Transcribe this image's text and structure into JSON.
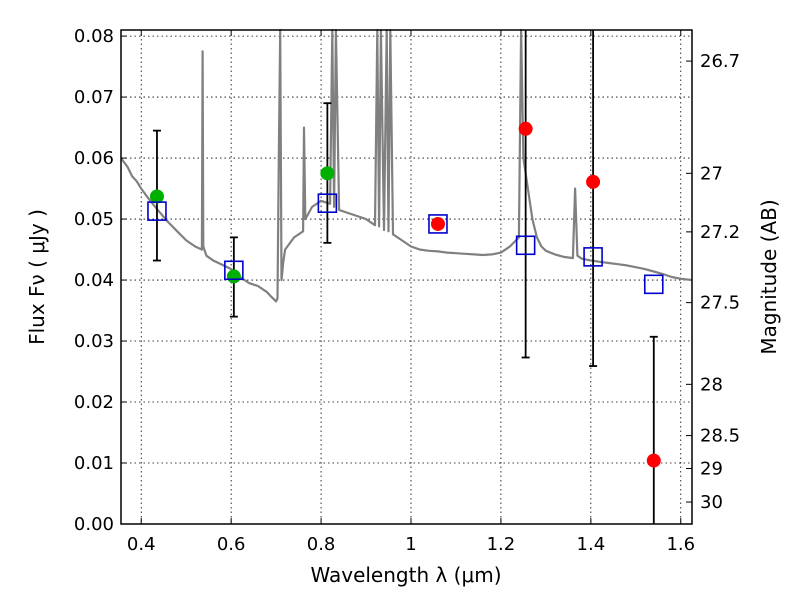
{
  "chart_data": {
    "type": "scatter",
    "xlabel": "Wavelength  λ (μm)",
    "ylabel": "Flux  Fν  ( μJy )",
    "ylabel_right": "Magnitude (AB)",
    "xlim": [
      0.355,
      1.625
    ],
    "ylim": [
      0.0,
      0.081
    ],
    "x_ticks": [
      0.4,
      0.6,
      0.8,
      1.0,
      1.2,
      1.4,
      1.6
    ],
    "x_tick_labels": [
      "0.4",
      "0.6",
      "0.8",
      "1",
      "1.2",
      "1.4",
      "1.6"
    ],
    "y_ticks": [
      0.0,
      0.01,
      0.02,
      0.03,
      0.04,
      0.05,
      0.06,
      0.07,
      0.08
    ],
    "y_tick_labels": [
      "0.00",
      "0.01",
      "0.02",
      "0.03",
      "0.04",
      "0.05",
      "0.06",
      "0.07",
      "0.08"
    ],
    "right_ticks": [
      {
        "label": "26.7",
        "flux": 0.0759
      },
      {
        "label": "27",
        "flux": 0.0575
      },
      {
        "label": "27.2",
        "flux": 0.0479
      },
      {
        "label": "27.5",
        "flux": 0.0363
      },
      {
        "label": "28",
        "flux": 0.0229
      },
      {
        "label": "28.5",
        "flux": 0.0145
      },
      {
        "label": "29",
        "flux": 0.0091
      },
      {
        "label": "30",
        "flux": 0.0036
      }
    ],
    "grid": true,
    "colors": {
      "model": "#808080",
      "hst": "#00b000",
      "ir": "#ff0000",
      "model_box": "#0000cc",
      "errorbar": "#000000"
    },
    "series": [
      {
        "marker": "circle",
        "color": "#00b000",
        "points": [
          {
            "x": 0.435,
            "y": 0.0537,
            "err_lo": 0.0432,
            "err_hi": 0.0645
          },
          {
            "x": 0.606,
            "y": 0.0406,
            "err_lo": 0.034,
            "err_hi": 0.047
          },
          {
            "x": 0.814,
            "y": 0.0575,
            "err_lo": 0.0461,
            "err_hi": 0.069
          }
        ]
      },
      {
        "marker": "circle",
        "color": "#ff0000",
        "points": [
          {
            "x": 1.06,
            "y": 0.0492,
            "err_lo": null,
            "err_hi": null
          },
          {
            "x": 1.255,
            "y": 0.0648,
            "err_lo": 0.0273,
            "err_hi": 0.081
          },
          {
            "x": 1.405,
            "y": 0.0561,
            "err_lo": 0.0259,
            "err_hi": 0.081
          },
          {
            "x": 1.54,
            "y": 0.0104,
            "err_lo": 0.0,
            "err_hi": 0.0307
          }
        ]
      },
      {
        "marker": "open-square",
        "color": "#0000cc",
        "points": [
          {
            "x": 0.435,
            "y": 0.0513
          },
          {
            "x": 0.606,
            "y": 0.0416
          },
          {
            "x": 0.814,
            "y": 0.0526
          },
          {
            "x": 1.06,
            "y": 0.0492
          },
          {
            "x": 1.255,
            "y": 0.0457
          },
          {
            "x": 1.405,
            "y": 0.0438
          },
          {
            "x": 1.54,
            "y": 0.0393
          }
        ]
      }
    ],
    "model_spectrum": {
      "x": [
        0.355,
        0.37,
        0.38,
        0.39,
        0.4,
        0.42,
        0.44,
        0.46,
        0.48,
        0.5,
        0.52,
        0.535,
        0.5365,
        0.538,
        0.545,
        0.56,
        0.58,
        0.6,
        0.62,
        0.64,
        0.66,
        0.68,
        0.69,
        0.7,
        0.703,
        0.706,
        0.709,
        0.712,
        0.716,
        0.72,
        0.74,
        0.76,
        0.762,
        0.765,
        0.78,
        0.8,
        0.82,
        0.825,
        0.829,
        0.833,
        0.84,
        0.86,
        0.88,
        0.9,
        0.92,
        0.925,
        0.929,
        0.933,
        0.94,
        0.946,
        0.95,
        0.954,
        0.96,
        0.98,
        1.0,
        1.02,
        1.04,
        1.06,
        1.08,
        1.1,
        1.12,
        1.14,
        1.16,
        1.18,
        1.2,
        1.22,
        1.24,
        1.245,
        1.25,
        1.26,
        1.27,
        1.28,
        1.29,
        1.3,
        1.32,
        1.34,
        1.36,
        1.365,
        1.37,
        1.38,
        1.4,
        1.42,
        1.44,
        1.46,
        1.48,
        1.5,
        1.52,
        1.54,
        1.56,
        1.58,
        1.6,
        1.625
      ],
      "y": [
        0.06,
        0.0585,
        0.057,
        0.0562,
        0.055,
        0.053,
        0.0512,
        0.0495,
        0.048,
        0.0465,
        0.0455,
        0.045,
        0.0775,
        0.0455,
        0.044,
        0.0432,
        0.0425,
        0.0418,
        0.0405,
        0.0395,
        0.039,
        0.038,
        0.0372,
        0.0365,
        0.037,
        0.06,
        0.081,
        0.04,
        0.043,
        0.045,
        0.047,
        0.048,
        0.065,
        0.05,
        0.052,
        0.053,
        0.0525,
        0.081,
        0.052,
        0.081,
        0.0515,
        0.051,
        0.0505,
        0.05,
        0.049,
        0.081,
        0.0488,
        0.081,
        0.0482,
        0.081,
        0.048,
        0.081,
        0.0475,
        0.0465,
        0.0455,
        0.045,
        0.0448,
        0.0447,
        0.0445,
        0.0444,
        0.0443,
        0.0442,
        0.0441,
        0.0442,
        0.0445,
        0.0455,
        0.047,
        0.081,
        0.06,
        0.055,
        0.05,
        0.047,
        0.0455,
        0.0448,
        0.0442,
        0.0438,
        0.0436,
        0.055,
        0.044,
        0.0435,
        0.0432,
        0.043,
        0.0428,
        0.0426,
        0.0424,
        0.0421,
        0.0418,
        0.0414,
        0.041,
        0.0405,
        0.0402,
        0.04
      ]
    }
  }
}
